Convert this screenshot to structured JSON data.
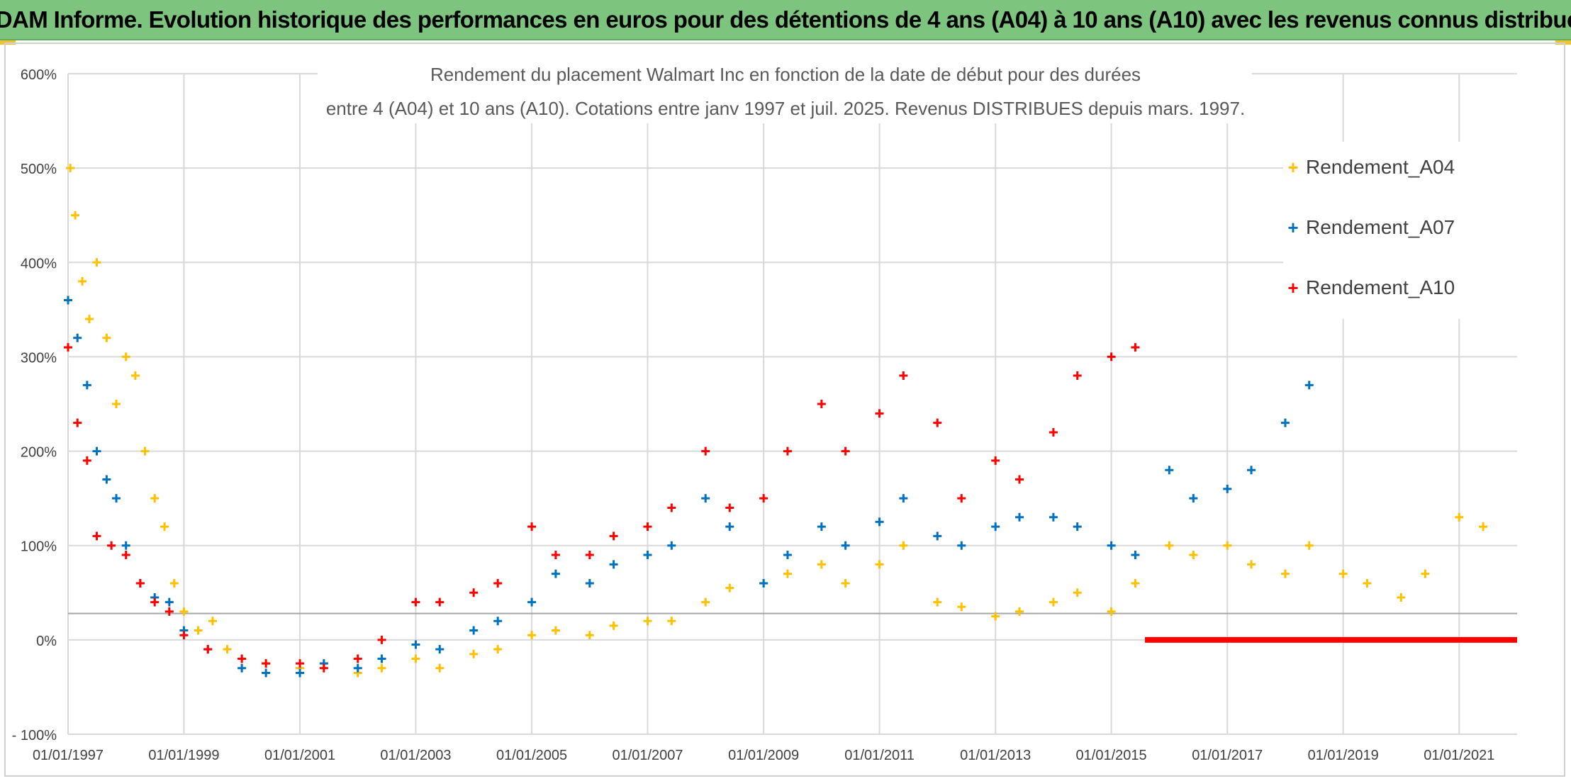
{
  "header": {
    "banner_title": "ADAM Informe. Evolution historique des performances en euros pour des détentions de 4 ans (A04) à 10 ans (A10) avec les revenus connus distribués"
  },
  "chart_data": {
    "type": "scatter",
    "title_line1": "Rendement du placement Walmart Inc en fonction de la date de début pour des durées",
    "title_line2": "entre 4 (A04) et 10 ans (A10). Cotations entre janv 1997 et juil. 2025. Revenus DISTRIBUES depuis mars. 1997.",
    "marker": "+",
    "x_axis_type": "date",
    "xlim": [
      "1997-01-01",
      "2022-01-01"
    ],
    "x_tick_labels": [
      "01/01/1997",
      "01/01/1999",
      "01/01/2001",
      "01/01/2003",
      "01/01/2005",
      "01/01/2007",
      "01/01/2009",
      "01/01/2011",
      "01/01/2013",
      "01/01/2015",
      "01/01/2017",
      "01/01/2019",
      "01/01/2021"
    ],
    "y_tick_values": [
      -100,
      0,
      100,
      200,
      300,
      400,
      500,
      600
    ],
    "y_tick_labels": [
      "- 100%",
      "0%",
      "100%",
      "200%",
      "300%",
      "400%",
      "500%",
      "600%"
    ],
    "ylim": [
      -100,
      600
    ],
    "grid": true,
    "reference_line_y": 28,
    "legend_position": "right",
    "series": [
      {
        "name": "Rendement_A04",
        "color": "#ffc000",
        "points": [
          [
            "1997-01-15",
            500
          ],
          [
            "1997-02-15",
            450
          ],
          [
            "1997-04-01",
            380
          ],
          [
            "1997-05-15",
            340
          ],
          [
            "1997-07-01",
            400
          ],
          [
            "1997-09-01",
            320
          ],
          [
            "1997-11-01",
            250
          ],
          [
            "1998-01-01",
            300
          ],
          [
            "1998-03-01",
            280
          ],
          [
            "1998-05-01",
            200
          ],
          [
            "1998-07-01",
            150
          ],
          [
            "1998-09-01",
            120
          ],
          [
            "1998-11-01",
            60
          ],
          [
            "1999-01-01",
            30
          ],
          [
            "1999-04-01",
            10
          ],
          [
            "1999-07-01",
            20
          ],
          [
            "1999-10-01",
            -10
          ],
          [
            "2000-01-01",
            -20
          ],
          [
            "2000-06-01",
            -25
          ],
          [
            "2001-01-01",
            -30
          ],
          [
            "2001-06-01",
            -25
          ],
          [
            "2002-01-01",
            -35
          ],
          [
            "2002-06-01",
            -30
          ],
          [
            "2003-01-01",
            -20
          ],
          [
            "2003-06-01",
            -30
          ],
          [
            "2004-01-01",
            -15
          ],
          [
            "2004-06-01",
            -10
          ],
          [
            "2005-01-01",
            5
          ],
          [
            "2005-06-01",
            10
          ],
          [
            "2006-01-01",
            5
          ],
          [
            "2006-06-01",
            15
          ],
          [
            "2007-01-01",
            20
          ],
          [
            "2007-06-01",
            20
          ],
          [
            "2008-01-01",
            40
          ],
          [
            "2008-06-01",
            55
          ],
          [
            "2009-01-01",
            60
          ],
          [
            "2009-06-01",
            70
          ],
          [
            "2010-01-01",
            80
          ],
          [
            "2010-06-01",
            60
          ],
          [
            "2011-01-01",
            80
          ],
          [
            "2011-06-01",
            100
          ],
          [
            "2012-01-01",
            40
          ],
          [
            "2012-06-01",
            35
          ],
          [
            "2013-01-01",
            25
          ],
          [
            "2013-06-01",
            30
          ],
          [
            "2014-01-01",
            40
          ],
          [
            "2014-06-01",
            50
          ],
          [
            "2015-01-01",
            30
          ],
          [
            "2015-06-01",
            60
          ],
          [
            "2016-01-01",
            100
          ],
          [
            "2016-06-01",
            90
          ],
          [
            "2017-01-01",
            100
          ],
          [
            "2017-06-01",
            80
          ],
          [
            "2018-01-01",
            70
          ],
          [
            "2018-06-01",
            100
          ],
          [
            "2019-01-01",
            70
          ],
          [
            "2019-06-01",
            60
          ],
          [
            "2020-01-01",
            45
          ],
          [
            "2020-06-01",
            70
          ],
          [
            "2021-01-01",
            130
          ],
          [
            "2021-06-01",
            120
          ]
        ]
      },
      {
        "name": "Rendement_A07",
        "color": "#0070c0",
        "points": [
          [
            "1997-01-01",
            360
          ],
          [
            "1997-03-01",
            320
          ],
          [
            "1997-05-01",
            270
          ],
          [
            "1997-07-01",
            200
          ],
          [
            "1997-09-01",
            170
          ],
          [
            "1997-11-01",
            150
          ],
          [
            "1998-01-01",
            100
          ],
          [
            "1998-04-01",
            60
          ],
          [
            "1998-07-01",
            45
          ],
          [
            "1998-10-01",
            40
          ],
          [
            "1999-01-01",
            10
          ],
          [
            "1999-06-01",
            -10
          ],
          [
            "2000-01-01",
            -30
          ],
          [
            "2000-06-01",
            -35
          ],
          [
            "2001-01-01",
            -35
          ],
          [
            "2001-06-01",
            -25
          ],
          [
            "2002-01-01",
            -30
          ],
          [
            "2002-06-01",
            -20
          ],
          [
            "2003-01-01",
            -5
          ],
          [
            "2003-06-01",
            -10
          ],
          [
            "2004-01-01",
            10
          ],
          [
            "2004-06-01",
            20
          ],
          [
            "2005-01-01",
            40
          ],
          [
            "2005-06-01",
            70
          ],
          [
            "2006-01-01",
            60
          ],
          [
            "2006-06-01",
            80
          ],
          [
            "2007-01-01",
            90
          ],
          [
            "2007-06-01",
            100
          ],
          [
            "2008-01-01",
            150
          ],
          [
            "2008-06-01",
            120
          ],
          [
            "2009-01-01",
            60
          ],
          [
            "2009-06-01",
            90
          ],
          [
            "2010-01-01",
            120
          ],
          [
            "2010-06-01",
            100
          ],
          [
            "2011-01-01",
            125
          ],
          [
            "2011-06-01",
            150
          ],
          [
            "2012-01-01",
            110
          ],
          [
            "2012-06-01",
            100
          ],
          [
            "2013-01-01",
            120
          ],
          [
            "2013-06-01",
            130
          ],
          [
            "2014-01-01",
            130
          ],
          [
            "2014-06-01",
            120
          ],
          [
            "2015-01-01",
            100
          ],
          [
            "2015-06-01",
            90
          ],
          [
            "2016-01-01",
            180
          ],
          [
            "2016-06-01",
            150
          ],
          [
            "2017-01-01",
            160
          ],
          [
            "2017-06-01",
            180
          ],
          [
            "2018-01-01",
            230
          ],
          [
            "2018-06-01",
            270
          ]
        ]
      },
      {
        "name": "Rendement_A10",
        "color": "#ff0000",
        "points": [
          [
            "1997-01-01",
            310
          ],
          [
            "1997-03-01",
            230
          ],
          [
            "1997-05-01",
            190
          ],
          [
            "1997-07-01",
            110
          ],
          [
            "1997-10-01",
            100
          ],
          [
            "1998-01-01",
            90
          ],
          [
            "1998-04-01",
            60
          ],
          [
            "1998-07-01",
            40
          ],
          [
            "1998-10-01",
            30
          ],
          [
            "1999-01-01",
            5
          ],
          [
            "1999-06-01",
            -10
          ],
          [
            "2000-01-01",
            -20
          ],
          [
            "2000-06-01",
            -25
          ],
          [
            "2001-01-01",
            -25
          ],
          [
            "2001-06-01",
            -30
          ],
          [
            "2002-01-01",
            -20
          ],
          [
            "2002-06-01",
            0
          ],
          [
            "2003-01-01",
            40
          ],
          [
            "2003-06-01",
            40
          ],
          [
            "2004-01-01",
            50
          ],
          [
            "2004-06-01",
            60
          ],
          [
            "2005-01-01",
            120
          ],
          [
            "2005-06-01",
            90
          ],
          [
            "2006-01-01",
            90
          ],
          [
            "2006-06-01",
            110
          ],
          [
            "2007-01-01",
            120
          ],
          [
            "2007-06-01",
            140
          ],
          [
            "2008-01-01",
            200
          ],
          [
            "2008-06-01",
            140
          ],
          [
            "2009-01-01",
            150
          ],
          [
            "2009-06-01",
            200
          ],
          [
            "2010-01-01",
            250
          ],
          [
            "2010-06-01",
            200
          ],
          [
            "2011-01-01",
            240
          ],
          [
            "2011-06-01",
            280
          ],
          [
            "2012-01-01",
            230
          ],
          [
            "2012-06-01",
            150
          ],
          [
            "2013-01-01",
            190
          ],
          [
            "2013-06-01",
            170
          ],
          [
            "2014-01-01",
            220
          ],
          [
            "2014-06-01",
            280
          ],
          [
            "2015-01-01",
            300
          ],
          [
            "2015-06-01",
            310
          ]
        ]
      }
    ],
    "zero_segment": {
      "from": "2015-08-01",
      "to": "2022-01-01",
      "value": 0,
      "color": "#ff0000"
    }
  },
  "legend": {
    "items": [
      {
        "label": "Rendement_A04",
        "color": "#ffc000",
        "marker": "+"
      },
      {
        "label": "Rendement_A07",
        "color": "#0070c0",
        "marker": "+"
      },
      {
        "label": "Rendement_A10",
        "color": "#ff0000",
        "marker": "+"
      }
    ]
  }
}
